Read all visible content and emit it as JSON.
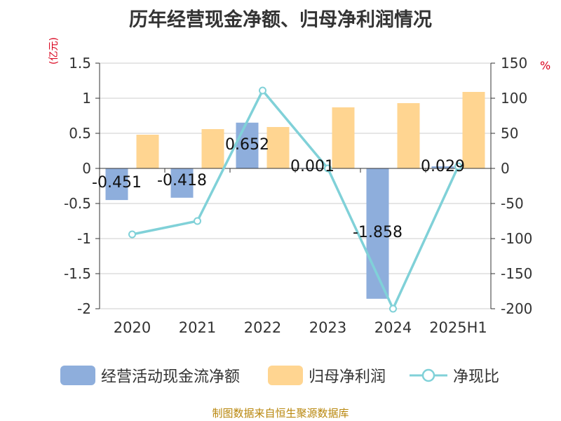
{
  "title": "历年经营现金净额、归母净利润情况",
  "unit_left": "(亿元)",
  "unit_right": "%",
  "source": "制图数据来自恒生聚源数据库",
  "legend": {
    "cashflow": "经营活动现金流净额",
    "profit": "归母净利润",
    "ratio": "净现比"
  },
  "colors": {
    "cashflow": "#8eaedc",
    "profit": "#ffd591",
    "ratio": "#80d1d8",
    "unit": "#d9001b",
    "source": "#b8860b"
  },
  "chart_data": {
    "type": "bar",
    "title": "历年经营现金净额、归母净利润情况",
    "categories": [
      "2020",
      "2021",
      "2022",
      "2023",
      "2024",
      "2025H1"
    ],
    "y_left": {
      "label": "(亿元)",
      "ylim": [
        -2,
        1.5
      ],
      "ticks": [
        "1.5",
        "1",
        "0.5",
        "0",
        "-0.5",
        "-1",
        "-1.5",
        "-2"
      ]
    },
    "y_right": {
      "label": "%",
      "ylim": [
        -200,
        150
      ],
      "ticks": [
        "150",
        "100",
        "50",
        "0",
        "-50",
        "-100",
        "-150",
        "-200"
      ]
    },
    "series": [
      {
        "name": "经营活动现金流净额",
        "type": "bar",
        "axis": "left",
        "values": [
          -0.451,
          -0.418,
          0.652,
          0.001,
          -1.858,
          0.029
        ],
        "labels": [
          "-0.451",
          "-0.418",
          "0.652",
          "0.001",
          "-1.858",
          "0.029"
        ]
      },
      {
        "name": "归母净利润",
        "type": "bar",
        "axis": "left",
        "values": [
          0.48,
          0.56,
          0.59,
          0.87,
          0.93,
          1.09
        ]
      },
      {
        "name": "净现比",
        "type": "line",
        "axis": "right",
        "values": [
          -94,
          -75,
          111,
          0,
          -200,
          3
        ]
      }
    ],
    "grid": true,
    "legend_position": "bottom"
  }
}
